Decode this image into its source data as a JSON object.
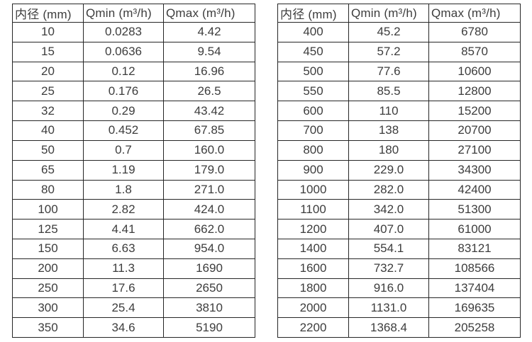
{
  "page": {
    "background": "#ffffff",
    "text_color": "#3d3d3d",
    "border_color": "#262626"
  },
  "chart_data": [
    {
      "type": "table",
      "title": "",
      "columns": [
        "内径 (mm)",
        "Qmin (m³/h)",
        "Qmax (m³/h)"
      ],
      "rows": [
        [
          "10",
          "0.0283",
          "4.42"
        ],
        [
          "15",
          "0.0636",
          "9.54"
        ],
        [
          "20",
          "0.12",
          "16.96"
        ],
        [
          "25",
          "0.176",
          "26.5"
        ],
        [
          "32",
          "0.29",
          "43.42"
        ],
        [
          "40",
          "0.452",
          "67.85"
        ],
        [
          "50",
          "0.7",
          "160.0"
        ],
        [
          "65",
          "1.19",
          "179.0"
        ],
        [
          "80",
          "1.8",
          "271.0"
        ],
        [
          "100",
          "2.82",
          "424.0"
        ],
        [
          "125",
          "4.41",
          "662.0"
        ],
        [
          "150",
          "6.63",
          "954.0"
        ],
        [
          "200",
          "11.3",
          "1690"
        ],
        [
          "250",
          "17.6",
          "2650"
        ],
        [
          "300",
          "25.4",
          "3810"
        ],
        [
          "350",
          "34.6",
          "5190"
        ]
      ]
    },
    {
      "type": "table",
      "title": "",
      "columns": [
        "内径 (mm)",
        "Qmin (m³/h)",
        "Qmax (m³/h)"
      ],
      "rows": [
        [
          "400",
          "45.2",
          "6780"
        ],
        [
          "450",
          "57.2",
          "8570"
        ],
        [
          "500",
          "77.6",
          "10600"
        ],
        [
          "550",
          "85.5",
          "12800"
        ],
        [
          "600",
          "110",
          "15200"
        ],
        [
          "700",
          "138",
          "20700"
        ],
        [
          "800",
          "180",
          "27100"
        ],
        [
          "900",
          "229.0",
          "34300"
        ],
        [
          "1000",
          "282.0",
          "42400"
        ],
        [
          "1100",
          "342.0",
          "51300"
        ],
        [
          "1200",
          "407.0",
          "61000"
        ],
        [
          "1400",
          "554.1",
          "83121"
        ],
        [
          "1600",
          "732.7",
          "108566"
        ],
        [
          "1800",
          "916.0",
          "137404"
        ],
        [
          "2000",
          "1131.0",
          "169635"
        ],
        [
          "2200",
          "1368.4",
          "205258"
        ]
      ]
    }
  ]
}
